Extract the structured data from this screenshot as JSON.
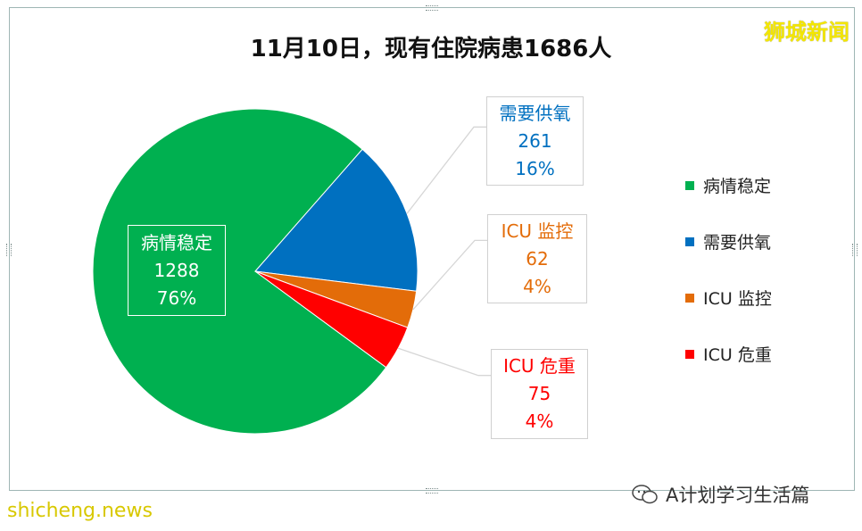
{
  "chart_data": {
    "type": "pie",
    "title": "11月10日，现有住院病患1686人",
    "legend_position": "right",
    "slices": [
      {
        "name": "病情稳定",
        "value": 1288,
        "percent": "76%",
        "color": "#00b050"
      },
      {
        "name": "需要供氧",
        "value": 261,
        "percent": "16%",
        "color": "#0070c0"
      },
      {
        "name": "ICU 监控",
        "value": 62,
        "percent": "4%",
        "color": "#e36c09"
      },
      {
        "name": "ICU 危重",
        "value": 75,
        "percent": "4%",
        "color": "#ff0000"
      }
    ],
    "legend": [
      "病情稳定",
      "需要供氧",
      "ICU 监控",
      "ICU 危重"
    ]
  },
  "watermarks": {
    "top_right": "狮城新闻",
    "bottom_left": "shicheng.news",
    "bottom_right": "A计划学习生活篇"
  }
}
